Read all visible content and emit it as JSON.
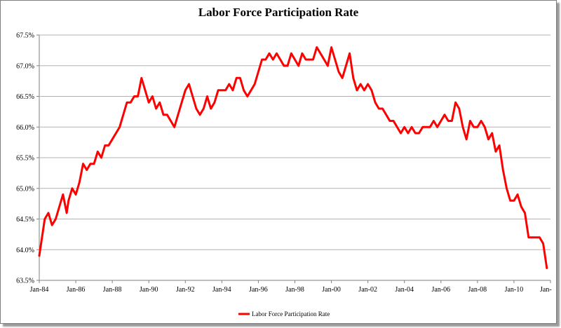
{
  "chart_data": {
    "type": "line",
    "title": "Labor Force Participation Rate",
    "xlabel": "",
    "ylabel": "",
    "ylim": [
      63.5,
      67.5
    ],
    "yticks": [
      63.5,
      64.0,
      64.5,
      65.0,
      65.5,
      66.0,
      66.5,
      67.0,
      67.5
    ],
    "ytick_labels": [
      "63.5%",
      "64.0%",
      "64.5%",
      "65.0%",
      "65.5%",
      "66.0%",
      "66.5%",
      "67.0%",
      "67.5%"
    ],
    "xlim": [
      1984.0,
      2012.0
    ],
    "xticks": [
      1984,
      1986,
      1988,
      1990,
      1992,
      1994,
      1996,
      1998,
      2000,
      2002,
      2004,
      2006,
      2008,
      2010,
      2012
    ],
    "xtick_labels": [
      "Jan-84",
      "Jan-86",
      "Jan-88",
      "Jan-90",
      "Jan-92",
      "Jan-94",
      "Jan-96",
      "Jan-98",
      "Jan-00",
      "Jan-02",
      "Jan-04",
      "Jan-06",
      "Jan-08",
      "Jan-10",
      "Jan-"
    ],
    "grid": true,
    "legend_position": "bottom-center",
    "color": "#ff0000",
    "series": [
      {
        "name": "Labor Force Participation Rate",
        "x": [
          1984.0,
          1984.1,
          1984.3,
          1984.5,
          1984.7,
          1984.9,
          1985.1,
          1985.3,
          1985.5,
          1985.6,
          1985.8,
          1986.0,
          1986.2,
          1986.4,
          1986.6,
          1986.8,
          1987.0,
          1987.2,
          1987.4,
          1987.6,
          1987.8,
          1988.0,
          1988.2,
          1988.4,
          1988.6,
          1988.8,
          1989.0,
          1989.2,
          1989.4,
          1989.6,
          1989.8,
          1990.0,
          1990.2,
          1990.4,
          1990.6,
          1990.8,
          1991.0,
          1991.2,
          1991.4,
          1991.6,
          1991.8,
          1992.0,
          1992.2,
          1992.4,
          1992.6,
          1992.8,
          1993.0,
          1993.2,
          1993.4,
          1993.6,
          1993.8,
          1994.0,
          1994.2,
          1994.4,
          1994.6,
          1994.8,
          1995.0,
          1995.2,
          1995.4,
          1995.6,
          1995.8,
          1996.0,
          1996.2,
          1996.4,
          1996.6,
          1996.8,
          1997.0,
          1997.2,
          1997.4,
          1997.6,
          1997.8,
          1998.0,
          1998.2,
          1998.4,
          1998.6,
          1998.8,
          1999.0,
          1999.2,
          1999.4,
          1999.6,
          1999.8,
          2000.0,
          2000.2,
          2000.4,
          2000.6,
          2000.8,
          2001.0,
          2001.2,
          2001.4,
          2001.6,
          2001.8,
          2002.0,
          2002.2,
          2002.4,
          2002.6,
          2002.8,
          2003.0,
          2003.2,
          2003.4,
          2003.6,
          2003.8,
          2004.0,
          2004.2,
          2004.4,
          2004.6,
          2004.8,
          2005.0,
          2005.2,
          2005.4,
          2005.6,
          2005.8,
          2006.0,
          2006.2,
          2006.4,
          2006.6,
          2006.8,
          2007.0,
          2007.2,
          2007.4,
          2007.6,
          2007.8,
          2008.0,
          2008.2,
          2008.4,
          2008.6,
          2008.8,
          2009.0,
          2009.2,
          2009.4,
          2009.6,
          2009.8,
          2010.0,
          2010.2,
          2010.4,
          2010.6,
          2010.8,
          2011.0,
          2011.2,
          2011.4,
          2011.6,
          2011.8
        ],
        "values": [
          63.9,
          64.1,
          64.5,
          64.6,
          64.4,
          64.5,
          64.7,
          64.9,
          64.6,
          64.8,
          65.0,
          64.9,
          65.1,
          65.4,
          65.3,
          65.4,
          65.4,
          65.6,
          65.5,
          65.7,
          65.7,
          65.8,
          65.9,
          66.0,
          66.2,
          66.4,
          66.4,
          66.5,
          66.5,
          66.8,
          66.6,
          66.4,
          66.5,
          66.3,
          66.4,
          66.2,
          66.2,
          66.1,
          66.0,
          66.2,
          66.4,
          66.6,
          66.7,
          66.5,
          66.3,
          66.2,
          66.3,
          66.5,
          66.3,
          66.4,
          66.6,
          66.6,
          66.6,
          66.7,
          66.6,
          66.8,
          66.8,
          66.6,
          66.5,
          66.6,
          66.7,
          66.9,
          67.1,
          67.1,
          67.2,
          67.1,
          67.2,
          67.1,
          67.0,
          67.0,
          67.2,
          67.1,
          67.0,
          67.2,
          67.1,
          67.1,
          67.1,
          67.3,
          67.2,
          67.1,
          67.0,
          67.3,
          67.1,
          66.9,
          66.8,
          67.0,
          67.2,
          66.8,
          66.6,
          66.7,
          66.6,
          66.7,
          66.6,
          66.4,
          66.3,
          66.3,
          66.2,
          66.1,
          66.1,
          66.0,
          65.9,
          66.0,
          65.9,
          66.0,
          65.9,
          65.9,
          66.0,
          66.0,
          66.0,
          66.1,
          66.0,
          66.1,
          66.2,
          66.1,
          66.1,
          66.4,
          66.3,
          66.0,
          65.8,
          66.1,
          66.0,
          66.0,
          66.1,
          66.0,
          65.8,
          65.9,
          65.6,
          65.7,
          65.3,
          65.0,
          64.8,
          64.8,
          64.9,
          64.7,
          64.6,
          64.2,
          64.2,
          64.2,
          64.2,
          64.1,
          63.7
        ]
      }
    ]
  }
}
